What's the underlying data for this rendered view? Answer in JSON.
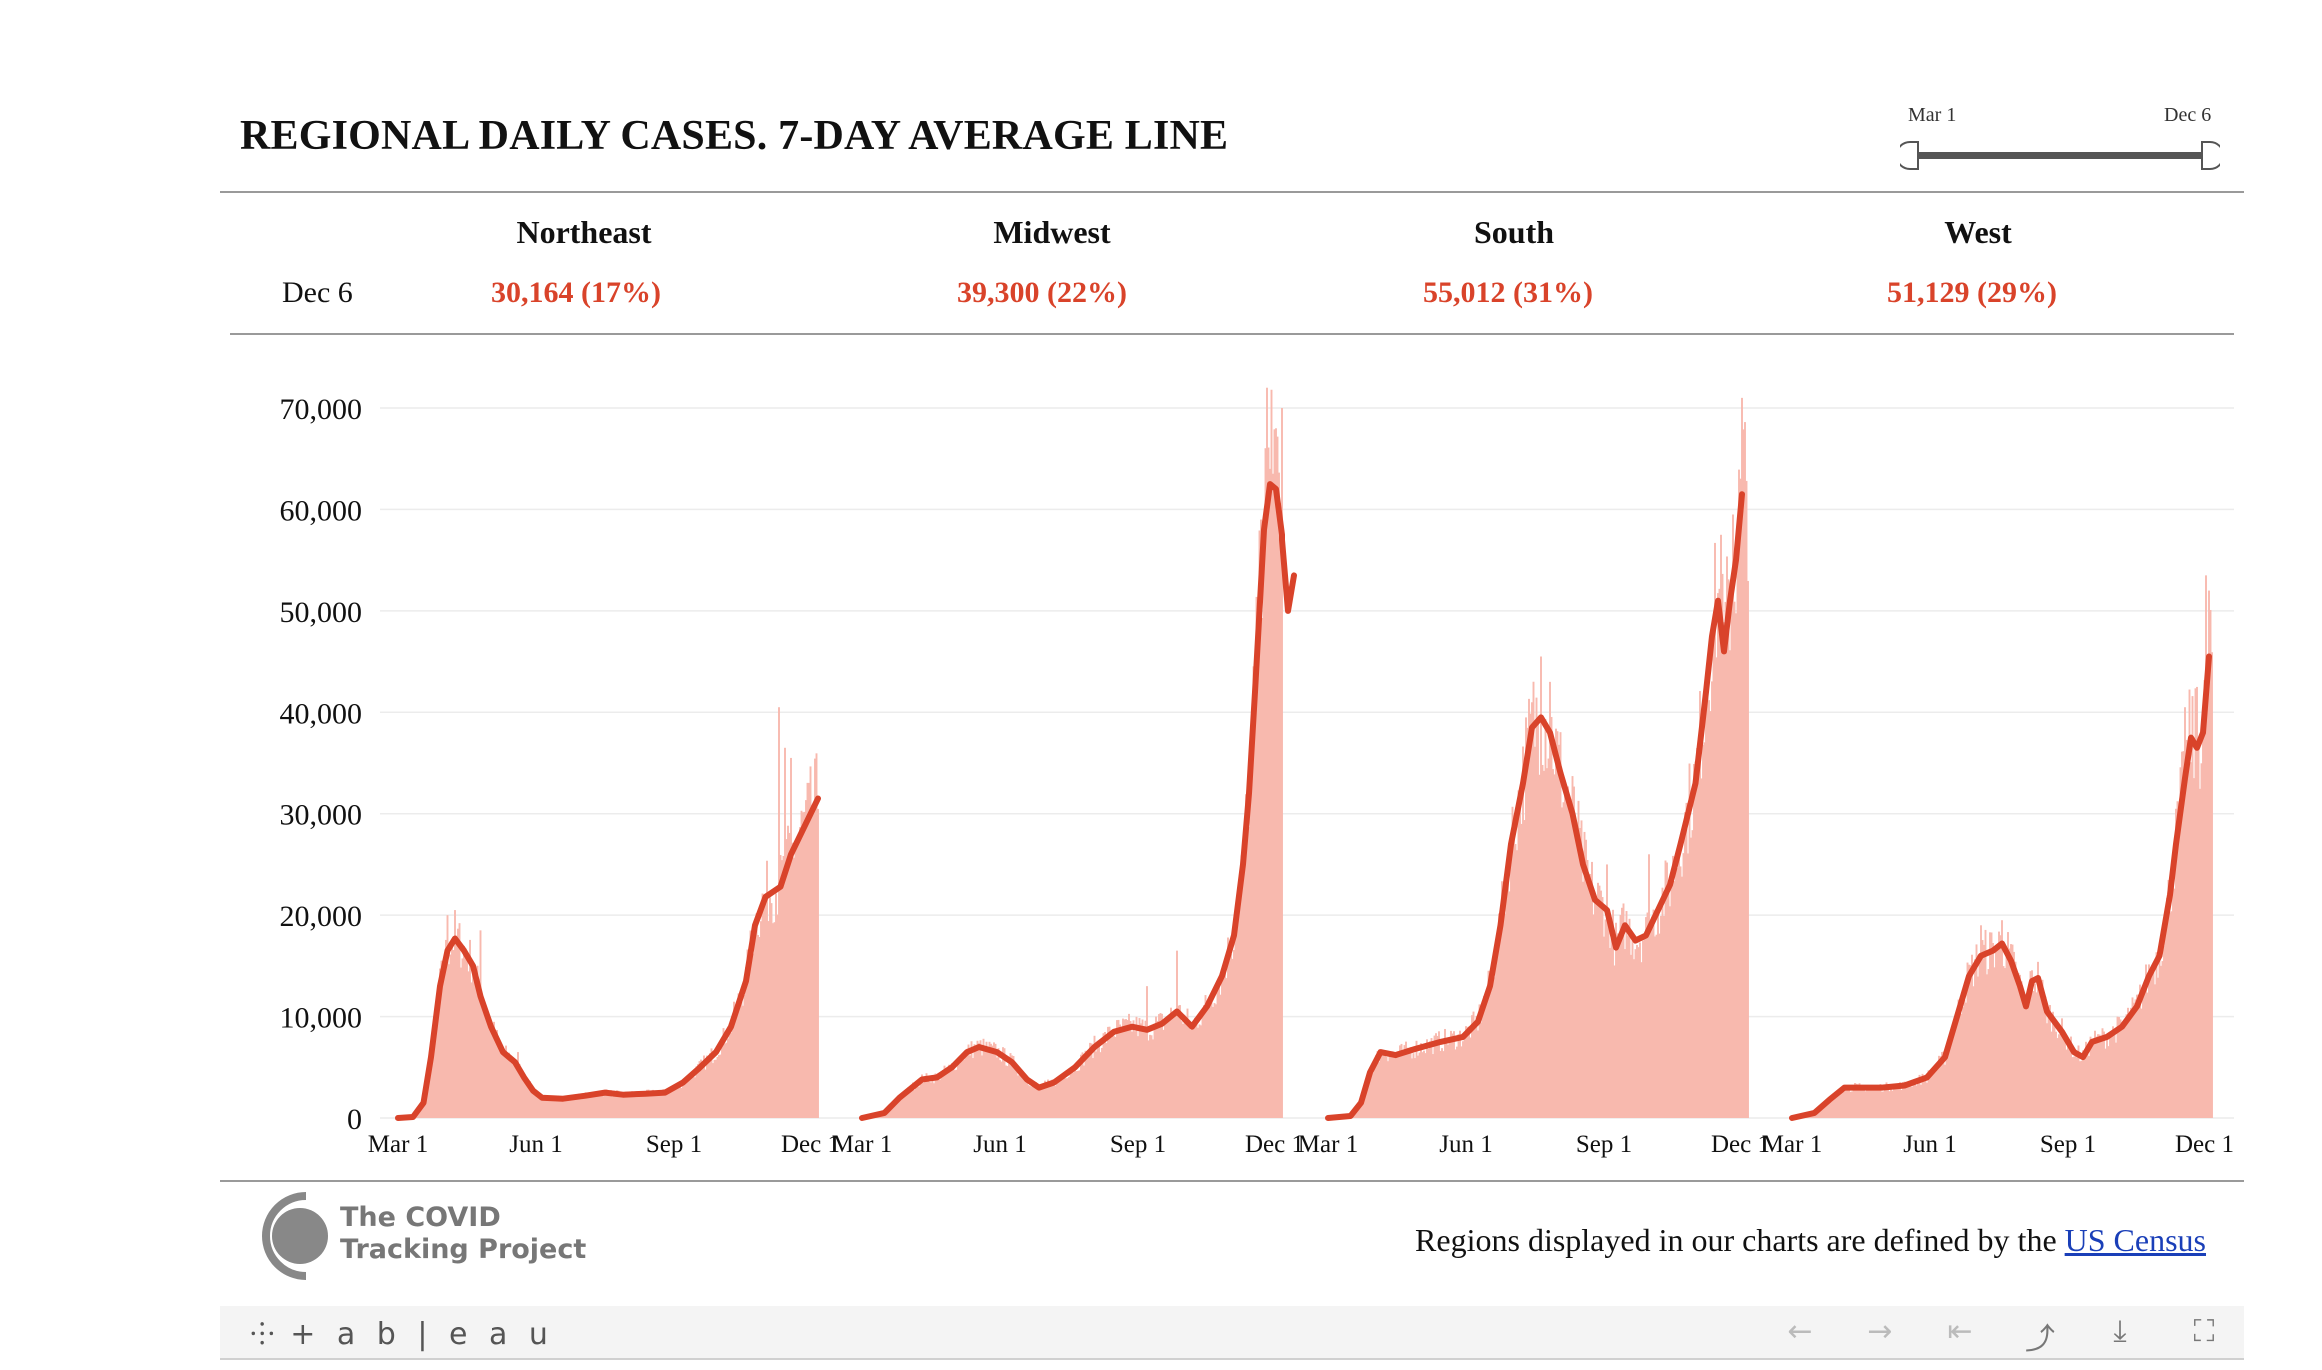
{
  "title": "REGIONAL DAILY CASES. 7-DAY AVERAGE LINE",
  "slider": {
    "start_label": "Mar 1",
    "end_label": "Dec 6"
  },
  "summary": {
    "date_label": "Dec 6",
    "regions": [
      {
        "name": "Northeast",
        "value": "30,164 (17%)"
      },
      {
        "name": "Midwest",
        "value": "39,300 (22%)"
      },
      {
        "name": "South",
        "value": "55,012 (31%)"
      },
      {
        "name": "West",
        "value": "51,129 (29%)"
      }
    ]
  },
  "chart_data": {
    "type": "bar",
    "title": "REGIONAL DAILY CASES. 7-DAY AVERAGE LINE",
    "ylim": [
      0,
      70000
    ],
    "yticks": [
      0,
      10000,
      20000,
      30000,
      40000,
      50000,
      60000,
      70000
    ],
    "ytick_labels": [
      "0",
      "10,000",
      "20,000",
      "30,000",
      "40,000",
      "50,000",
      "60,000",
      "70,000"
    ],
    "xticks": [
      "Mar 1",
      "Jun 1",
      "Sep 1",
      "Dec 1"
    ],
    "x_range": [
      "Mar 1",
      "Dec 6"
    ],
    "bar_color": "#f8b9ae",
    "line_color": "#d9432a",
    "grid": true,
    "panels": [
      {
        "name": "Northeast",
        "avg": [
          [
            0,
            0
          ],
          [
            10,
            100
          ],
          [
            17,
            1500
          ],
          [
            22,
            6000
          ],
          [
            28,
            13000
          ],
          [
            33,
            16500
          ],
          [
            38,
            17700
          ],
          [
            44,
            16500
          ],
          [
            50,
            15000
          ],
          [
            55,
            12000
          ],
          [
            62,
            9000
          ],
          [
            70,
            6500
          ],
          [
            78,
            5500
          ],
          [
            84,
            4000
          ],
          [
            90,
            2700
          ],
          [
            96,
            2000
          ],
          [
            110,
            1900
          ],
          [
            125,
            2200
          ],
          [
            138,
            2500
          ],
          [
            150,
            2300
          ],
          [
            165,
            2400
          ],
          [
            178,
            2500
          ],
          [
            190,
            3500
          ],
          [
            200,
            4800
          ],
          [
            212,
            6500
          ],
          [
            222,
            9000
          ],
          [
            232,
            13500
          ],
          [
            238,
            19000
          ],
          [
            245,
            21800
          ],
          [
            255,
            22800
          ],
          [
            262,
            26000
          ],
          [
            280,
            31500
          ]
        ],
        "peaks": [
          [
            33,
            20000
          ],
          [
            38,
            20500
          ],
          [
            55,
            18500
          ],
          [
            80,
            6500
          ],
          [
            254,
            40500
          ],
          [
            258,
            36500
          ],
          [
            262,
            35500
          ]
        ]
      },
      {
        "name": "Midwest",
        "avg": [
          [
            0,
            0
          ],
          [
            15,
            500
          ],
          [
            25,
            2000
          ],
          [
            40,
            3800
          ],
          [
            50,
            4000
          ],
          [
            60,
            5000
          ],
          [
            70,
            6500
          ],
          [
            78,
            7000
          ],
          [
            90,
            6500
          ],
          [
            100,
            5500
          ],
          [
            110,
            3800
          ],
          [
            118,
            3000
          ],
          [
            128,
            3500
          ],
          [
            142,
            5000
          ],
          [
            155,
            7000
          ],
          [
            168,
            8500
          ],
          [
            180,
            9000
          ],
          [
            190,
            8700
          ],
          [
            200,
            9300
          ],
          [
            210,
            10500
          ],
          [
            220,
            9000
          ],
          [
            230,
            11000
          ],
          [
            240,
            14000
          ],
          [
            248,
            18000
          ],
          [
            254,
            25000
          ],
          [
            258,
            32000
          ],
          [
            262,
            42000
          ],
          [
            265,
            50000
          ],
          [
            268,
            58000
          ],
          [
            272,
            62500
          ],
          [
            276,
            62000
          ],
          [
            280,
            57500
          ],
          [
            284,
            50000
          ],
          [
            288,
            53500
          ],
          [
            280,
            57000
          ]
        ],
        "peaks": [
          [
            190,
            13000
          ],
          [
            210,
            16500
          ],
          [
            262,
            41000
          ],
          [
            266,
            59000
          ],
          [
            270,
            72000
          ],
          [
            273,
            71800
          ],
          [
            276,
            68000
          ],
          [
            280,
            70000
          ],
          [
            284,
            64000
          ],
          [
            288,
            60000
          ]
        ]
      },
      {
        "name": "South",
        "avg": [
          [
            0,
            0
          ],
          [
            15,
            200
          ],
          [
            22,
            1500
          ],
          [
            28,
            4500
          ],
          [
            35,
            6500
          ],
          [
            45,
            6200
          ],
          [
            58,
            6800
          ],
          [
            75,
            7500
          ],
          [
            90,
            8000
          ],
          [
            100,
            9500
          ],
          [
            108,
            13000
          ],
          [
            115,
            19000
          ],
          [
            122,
            27000
          ],
          [
            130,
            33000
          ],
          [
            136,
            38500
          ],
          [
            142,
            39500
          ],
          [
            148,
            38000
          ],
          [
            155,
            34000
          ],
          [
            163,
            30000
          ],
          [
            170,
            25000
          ],
          [
            178,
            21500
          ],
          [
            186,
            20500
          ],
          [
            192,
            16800
          ],
          [
            198,
            19000
          ],
          [
            205,
            17500
          ],
          [
            212,
            18000
          ],
          [
            220,
            20500
          ],
          [
            228,
            23000
          ],
          [
            235,
            27000
          ],
          [
            245,
            33000
          ],
          [
            252,
            42000
          ],
          [
            256,
            47500
          ],
          [
            260,
            51000
          ],
          [
            264,
            46000
          ],
          [
            268,
            51000
          ],
          [
            272,
            55000
          ],
          [
            276,
            61500
          ]
        ],
        "peaks": [
          [
            142,
            45500
          ],
          [
            148,
            43000
          ],
          [
            186,
            25000
          ],
          [
            214,
            26000
          ],
          [
            262,
            57500
          ],
          [
            270,
            59500
          ],
          [
            276,
            71000
          ]
        ]
      },
      {
        "name": "West",
        "avg": [
          [
            0,
            0
          ],
          [
            15,
            500
          ],
          [
            25,
            1800
          ],
          [
            35,
            3000
          ],
          [
            45,
            3000
          ],
          [
            60,
            3000
          ],
          [
            75,
            3200
          ],
          [
            90,
            4000
          ],
          [
            102,
            6000
          ],
          [
            110,
            10000
          ],
          [
            118,
            14000
          ],
          [
            126,
            16000
          ],
          [
            134,
            16500
          ],
          [
            140,
            17200
          ],
          [
            146,
            15500
          ],
          [
            152,
            13000
          ],
          [
            156,
            11000
          ],
          [
            160,
            13500
          ],
          [
            164,
            13800
          ],
          [
            170,
            10500
          ],
          [
            180,
            8500
          ],
          [
            188,
            6500
          ],
          [
            194,
            6000
          ],
          [
            200,
            7500
          ],
          [
            210,
            8000
          ],
          [
            220,
            9000
          ],
          [
            230,
            11000
          ],
          [
            238,
            14000
          ],
          [
            245,
            16000
          ],
          [
            252,
            22000
          ],
          [
            256,
            27000
          ],
          [
            262,
            33500
          ],
          [
            266,
            37500
          ],
          [
            270,
            36500
          ],
          [
            274,
            38000
          ],
          [
            278,
            45500
          ]
        ],
        "peaks": [
          [
            126,
            19000
          ],
          [
            140,
            19500
          ],
          [
            262,
            40500
          ],
          [
            270,
            42500
          ],
          [
            276,
            53500
          ],
          [
            278,
            52000
          ]
        ]
      }
    ]
  },
  "footer": {
    "logo_line1": "The COVID",
    "logo_line2": "Tracking Project",
    "note": "Regions displayed in our charts are defined by the ",
    "link_text": "US Census"
  },
  "toolbar": {
    "brand": "+ a b | e a u"
  }
}
